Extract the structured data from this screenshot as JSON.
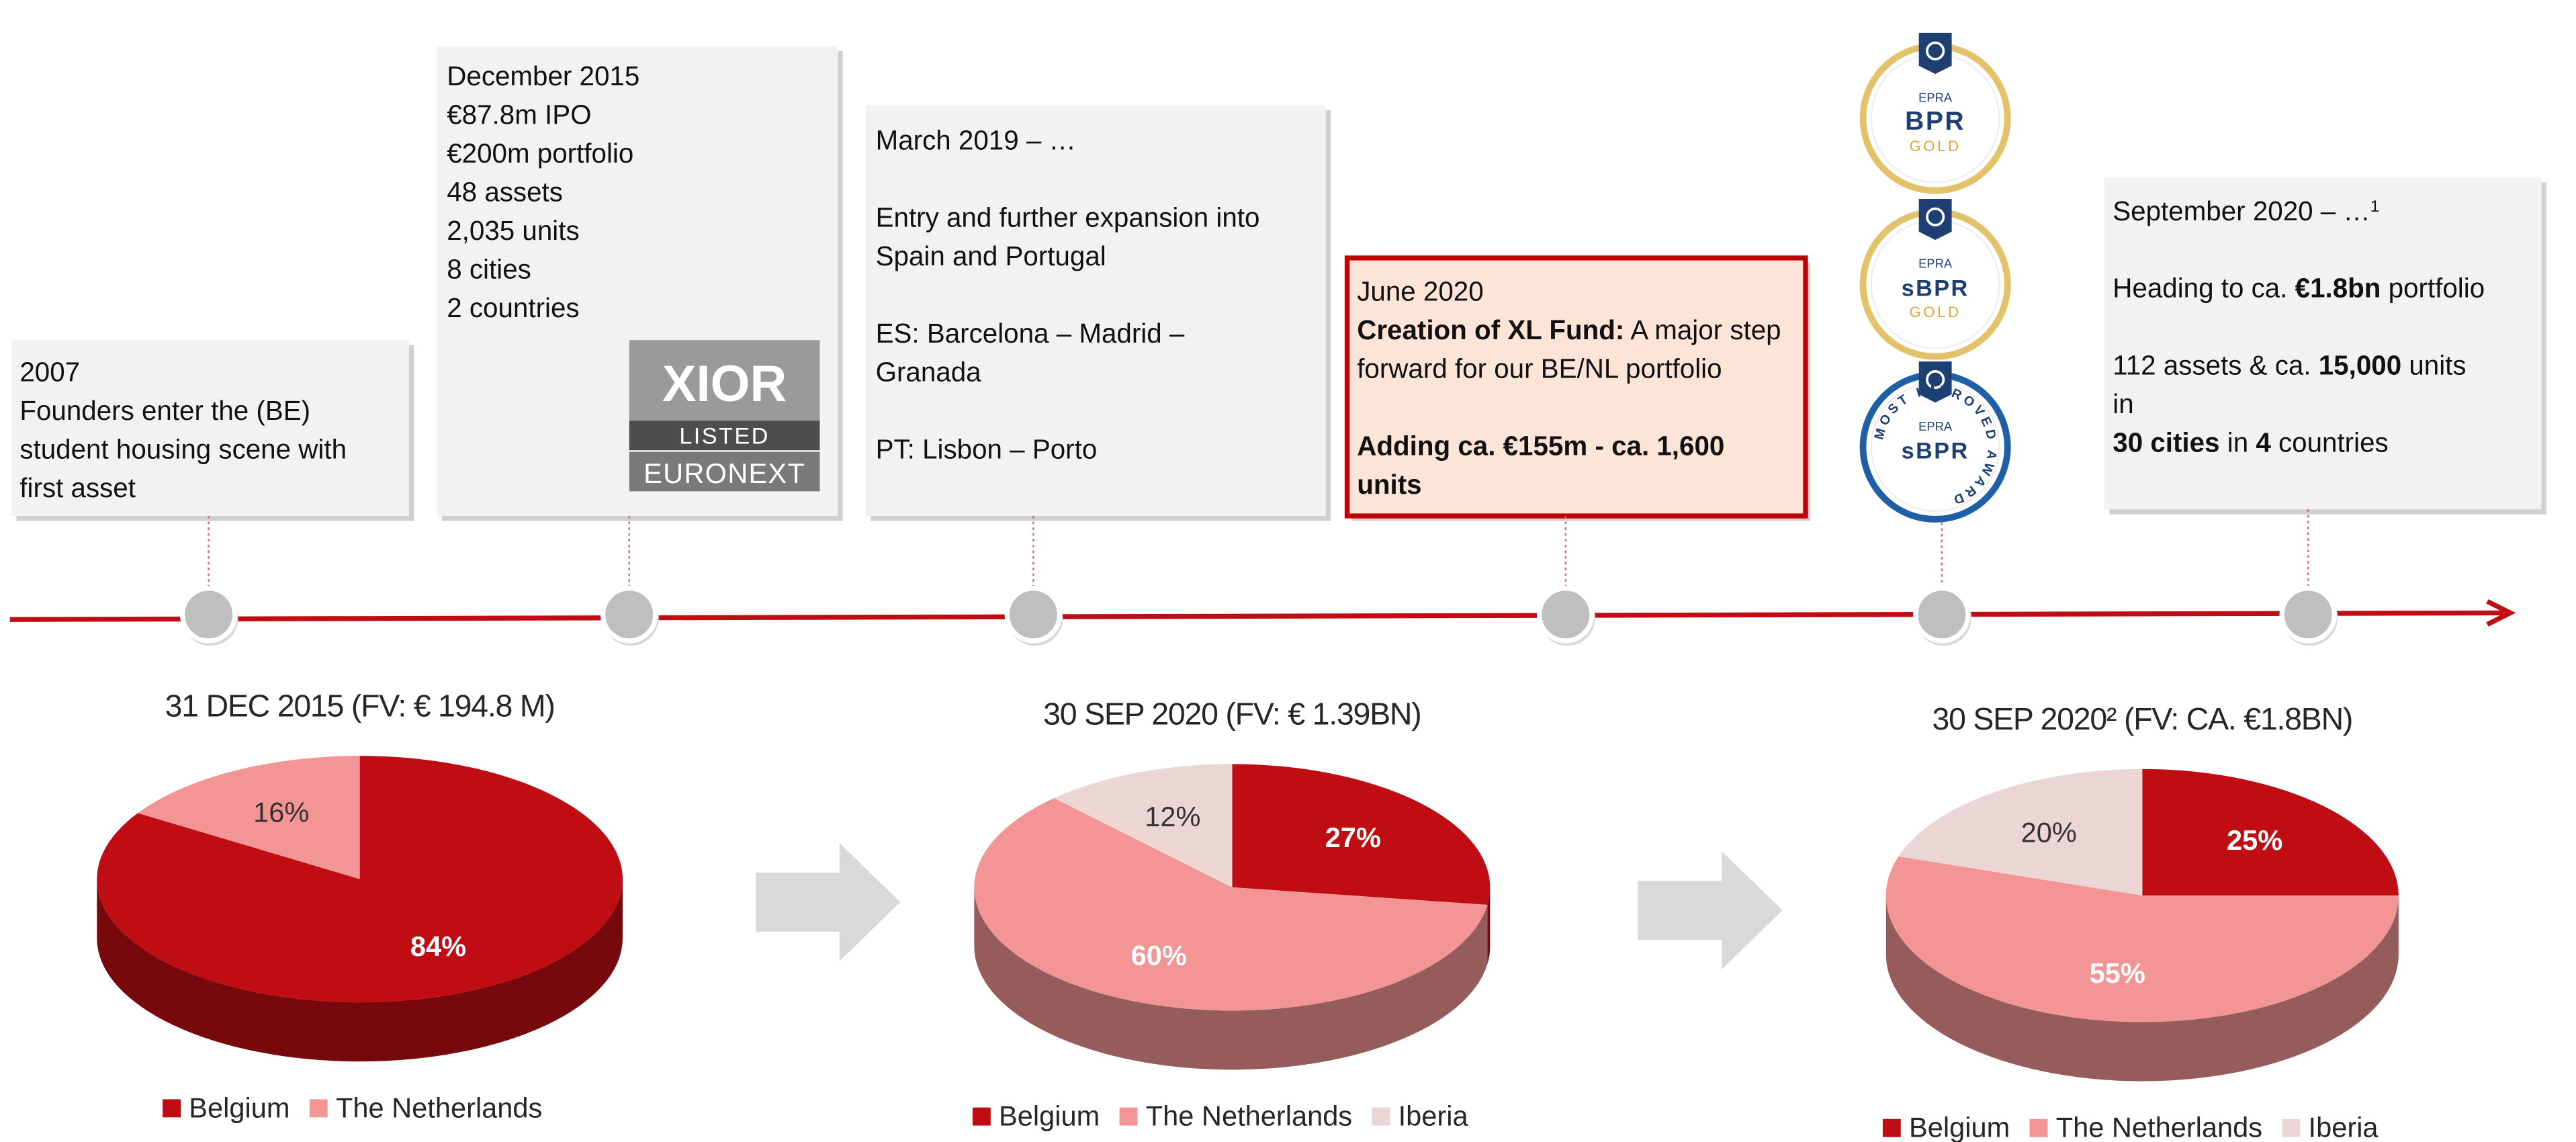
{
  "timeline": {
    "events": [
      {
        "paragraphs": [
          [
            "2007",
            "Founders enter the (BE)",
            "student housing scene with",
            "first asset"
          ]
        ]
      },
      {
        "paragraphs": [
          [
            "December 2015",
            "€87.8m IPO",
            "€200m portfolio",
            "48 assets",
            "2,035 units",
            "8 cities",
            "2 countries"
          ]
        ]
      },
      {
        "paragraphs": [
          [
            [
              "March  2019",
              " – …"
            ]
          ],
          [
            "Entry and further expansion into",
            "Spain and Portugal"
          ],
          [
            "ES: Barcelona – Madrid –",
            "Granada"
          ],
          [
            "PT: Lisbon – Porto"
          ]
        ]
      },
      {
        "highlight": true,
        "paragraphs": [
          [
            "June 2020",
            [
              {
                "text": "Creation of XL Fund:",
                "bold": true
              },
              " A major step"
            ],
            "forward for our BE/NL portfolio"
          ],
          [
            [
              {
                "text": "Adding ca. €155m - ca. 1,600",
                "bold": true
              }
            ],
            [
              {
                "text": "units",
                "bold": true
              }
            ]
          ]
        ]
      },
      {
        "paragraphs": [
          [
            [
              "September 2020 – …",
              {
                "text": "1",
                "sup": true
              }
            ]
          ],
          [
            [
              "Heading to ca. ",
              {
                "text": "€1.8bn",
                "bold": true
              },
              " portfolio"
            ]
          ],
          [
            [
              "112 assets & ca. ",
              {
                "text": "15,000",
                "bold": true
              },
              " units"
            ],
            "in",
            [
              {
                "text": "30 cities",
                "bold": true
              },
              " in ",
              {
                "text": "4",
                "bold": true
              },
              " countries"
            ]
          ]
        ]
      }
    ]
  },
  "logo": {
    "name": "XIOR",
    "line1": "LISTED",
    "line2": "EURONEXT"
  },
  "badges": [
    {
      "top": "EPRA",
      "main": "BPR",
      "bottom": "GOLD",
      "color": "#e3c36a"
    },
    {
      "top": "EPRA",
      "main": "sBPR",
      "bottom": "GOLD",
      "color": "#e3c36a"
    },
    {
      "top": "EPRA",
      "main": "sBPR",
      "ring": "MOST IMPROVED AWARD",
      "color": "#1f5fa8"
    }
  ],
  "chart_data": [
    {
      "type": "pie",
      "title": "31 DEC 2015 (FV: € 194.8 M)",
      "categories": [
        "Belgium",
        "The Netherlands"
      ],
      "values": [
        84,
        16
      ],
      "value_labels": [
        "84%",
        "16%"
      ],
      "colors": [
        "#c00d13",
        "#f29594"
      ],
      "label_colors": [
        "#ffffff",
        "#333333"
      ]
    },
    {
      "type": "pie",
      "title": "30 SEP 2020 (FV: € 1.39BN)",
      "categories": [
        "Belgium",
        "The Netherlands",
        "Iberia"
      ],
      "values": [
        27,
        60,
        12
      ],
      "value_labels": [
        "27%",
        "60%",
        "12%"
      ],
      "colors": [
        "#c00d13",
        "#f29594",
        "#ecd6d5"
      ],
      "label_colors": [
        "#ffffff",
        "#ffffff",
        "#333333"
      ]
    },
    {
      "type": "pie",
      "title": "30 SEP 2020² (FV: CA. €1.8BN)",
      "categories": [
        "Belgium",
        "The Netherlands",
        "Iberia"
      ],
      "values": [
        25,
        55,
        20
      ],
      "value_labels": [
        "25%",
        "55%",
        "20%"
      ],
      "colors": [
        "#c00d13",
        "#f29594",
        "#ecd6d5"
      ],
      "label_colors": [
        "#ffffff",
        "#ffffff",
        "#333333"
      ]
    }
  ]
}
